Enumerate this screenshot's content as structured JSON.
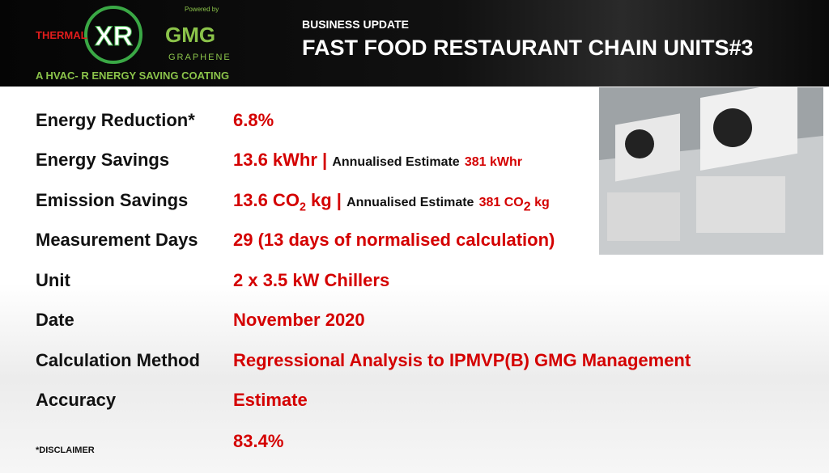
{
  "header": {
    "logo": {
      "thermal": "THERMAL",
      "xr": "XR",
      "powered_by": "Powered by",
      "gmg": "GMG",
      "graphene": "GRAPHENE",
      "tagline": "A HVAC- R ENERGY SAVING COATING"
    },
    "kicker": "BUSINESS UPDATE",
    "title": "FAST FOOD RESTAURANT CHAIN UNITS#3"
  },
  "rows": [
    {
      "label": "Energy Reduction*",
      "value": "6.8%"
    },
    {
      "label": "Energy Savings",
      "value": "13.6 kWhr |",
      "annual_label": "Annualised Estimate",
      "annual_value": "381 kWhr"
    },
    {
      "label": "Emission Savings",
      "value": "13.6 CO",
      "value_sub": "2",
      "value_tail": " kg |",
      "annual_label": "Annualised Estimate",
      "annual_value": "381 CO",
      "annual_sub": "2",
      "annual_tail": " kg"
    },
    {
      "label": "Measurement Days",
      "value": "29 (13 days of normalised calculation)"
    },
    {
      "label": "Unit",
      "value": "2 x 3.5 kW Chillers"
    },
    {
      "label": "Date",
      "value": "November 2020"
    },
    {
      "label": "Calculation Method",
      "value": "Regressional Analysis to IPMVP(B) GMG Management"
    },
    {
      "label": "Accuracy",
      "value": "Estimate"
    }
  ],
  "accuracy_value": "83.4%",
  "disclaimer": "*DISCLAIMER"
}
